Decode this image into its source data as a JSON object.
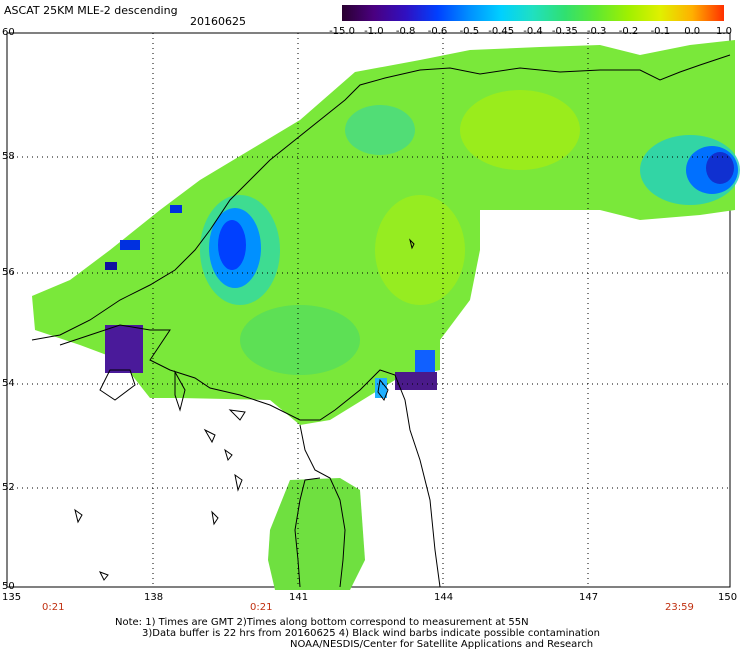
{
  "header": {
    "title": "ASCAT 25KM MLE-2 descending",
    "date": "20160625"
  },
  "colorbar": {
    "labels": [
      "-15.0",
      "-1.0",
      "-0.8",
      "-0.6",
      "-0.5",
      "-0.45",
      "-0.4",
      "-0.35",
      "-0.3",
      "-0.2",
      "-0.1",
      "0.0",
      "1.0"
    ],
    "colors": [
      "#2a0030",
      "#4a0080",
      "#3010c0",
      "#0040ff",
      "#0090ff",
      "#00d0ff",
      "#20e0c0",
      "#30e070",
      "#60e830",
      "#a0f000",
      "#e0f000",
      "#ffb000",
      "#ff3000"
    ]
  },
  "map": {
    "lat_labels": [
      "60",
      "58",
      "56",
      "54",
      "52",
      "50"
    ],
    "lon_labels": [
      "135",
      "138",
      "141",
      "144",
      "147",
      "150"
    ],
    "time_labels": [
      "0:21",
      "0:21",
      "23:59"
    ]
  },
  "footer": {
    "line1": "Note: 1) Times are GMT 2)Times along bottom correspond to measurement at 55N",
    "line2": "3)Data buffer is 22 hrs from 20160625 4) Black wind barbs indicate possible contamination",
    "line3": "NOAA/NESDIS/Center for Satellite Applications and Research"
  }
}
